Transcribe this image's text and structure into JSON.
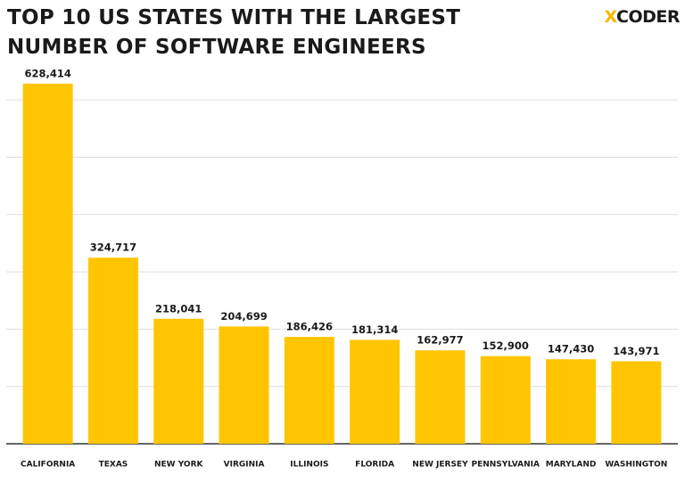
{
  "chart_data": {
    "type": "bar",
    "title": "TOP 10 US STATES WITH THE LARGEST NUMBER OF SOFTWARE ENGINEERS",
    "logo": "XCODER",
    "categories": [
      "CALIFORNIA",
      "TEXAS",
      "NEW YORK",
      "VIRGINIA",
      "ILLINOIS",
      "FLORIDA",
      "NEW JERSEY",
      "PENNSYLVANIA",
      "MARYLAND",
      "WASHINGTON"
    ],
    "values": [
      628414,
      324717,
      218041,
      204699,
      186426,
      181314,
      162977,
      152900,
      147430,
      143971
    ],
    "value_labels": [
      "628,414",
      "324,717",
      "218,041",
      "204,699",
      "186,426",
      "181,314",
      "162,977",
      "152,900",
      "147,430",
      "143,971"
    ],
    "color": "#ffc500",
    "ylim": [
      0,
      650000
    ],
    "yticks": [
      0,
      100000,
      200000,
      300000,
      400000,
      500000,
      600000
    ],
    "grid": true
  }
}
